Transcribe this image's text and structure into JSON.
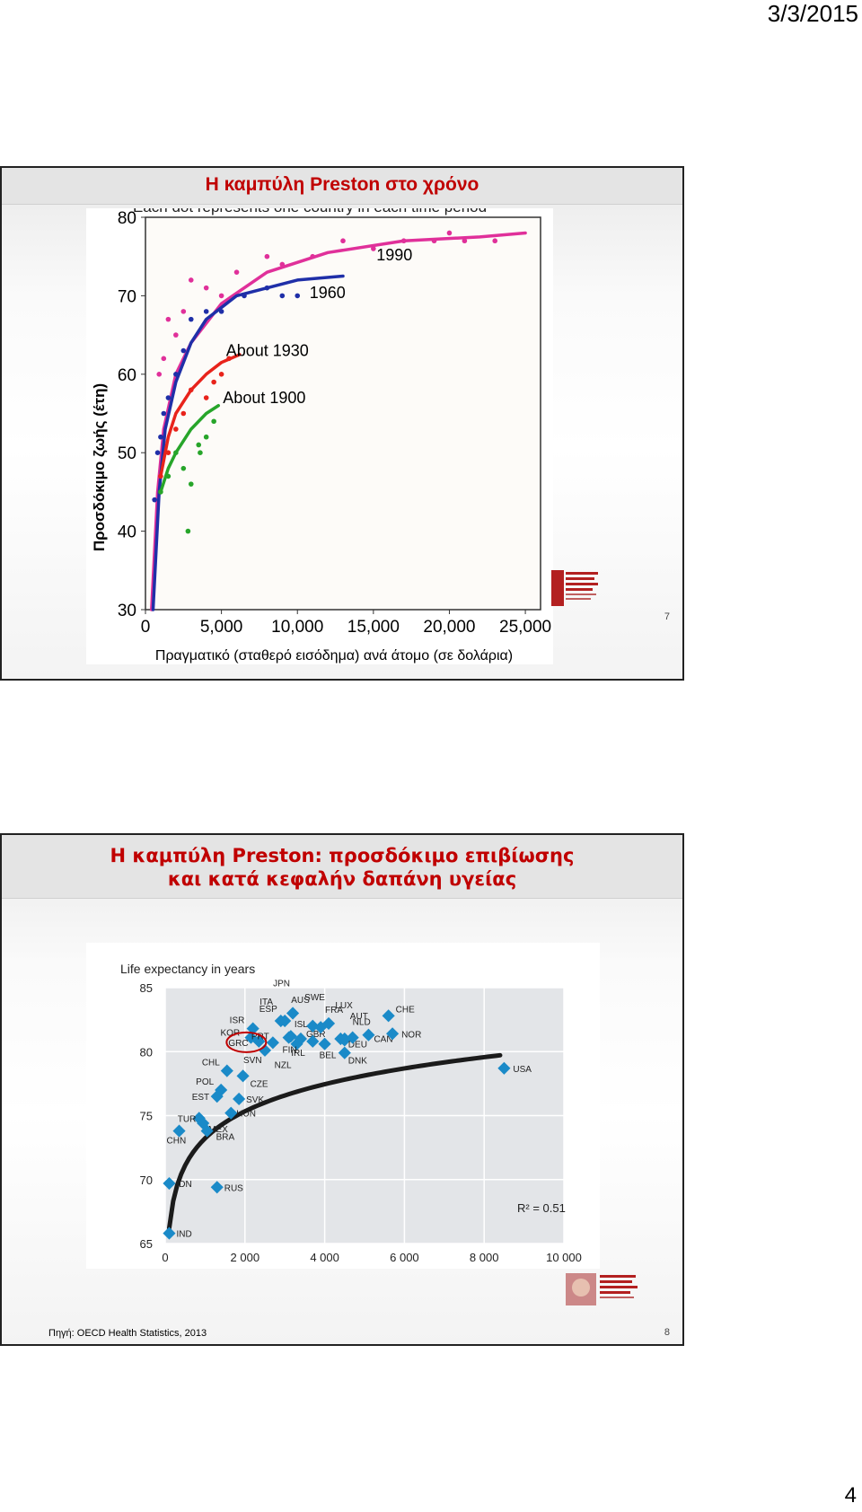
{
  "page": {
    "date": "3/3/2015",
    "page_number": "4"
  },
  "slide1": {
    "title": "Η καμπύλη Preston στο χρόνο",
    "header_partial": "Each dot represents one country in each time period",
    "ylabel": "Προσδόκιμο ζωής (έτη)",
    "xlabel": "Πραγματικό (σταθερό εισόδημα) ανά άτομο (σε δολάρια)",
    "slide_number": "7",
    "curve_labels": [
      "1990",
      "1960",
      "About 1930",
      "About 1900"
    ]
  },
  "slide2": {
    "title_line1": "Η καμπύλη Preston: προσδόκιμο επιβίωσης",
    "title_line2": "και κατά κεφαλήν δαπάνη υγείας",
    "source": "Πηγή: OECD Health Statistics, 2013",
    "slide_number": "8",
    "r2_label": "R² = 0.51"
  },
  "colors": {
    "title_red": "#c00000",
    "magenta": "#e0309a",
    "blue": "#1f2fa8",
    "red": "#e8231b",
    "green": "#27a52a",
    "oecd_point": "#1a8ac8"
  },
  "chart_data": [
    {
      "type": "scatter",
      "title": "",
      "xlabel": "Πραγματικό (σταθερό εισόδημα) ανά άτομο (σε δολάρια)",
      "ylabel": "Προσδόκιμο ζωής (έτη)",
      "xlim": [
        0,
        26000
      ],
      "ylim": [
        30,
        80
      ],
      "x_ticks": [
        "0",
        "5,000",
        "10,000",
        "15,000",
        "20,000",
        "25,000"
      ],
      "y_ticks": [
        "30",
        "40",
        "50",
        "60",
        "70",
        "80"
      ],
      "series": [
        {
          "name": "1990",
          "color": "#e0309a",
          "curve": [
            [
              400,
              30
            ],
            [
              800,
              45
            ],
            [
              1200,
              53
            ],
            [
              2000,
              60
            ],
            [
              3000,
              64
            ],
            [
              5000,
              69
            ],
            [
              8000,
              73
            ],
            [
              12000,
              75.5
            ],
            [
              17000,
              77
            ],
            [
              22000,
              77.5
            ],
            [
              25000,
              78
            ]
          ],
          "points": [
            [
              900,
              60
            ],
            [
              1200,
              62
            ],
            [
              1500,
              67
            ],
            [
              2000,
              65
            ],
            [
              2500,
              68
            ],
            [
              3000,
              72
            ],
            [
              4000,
              71
            ],
            [
              5000,
              70
            ],
            [
              6000,
              73
            ],
            [
              8000,
              75
            ],
            [
              9000,
              74
            ],
            [
              11000,
              75
            ],
            [
              13000,
              77
            ],
            [
              15000,
              76
            ],
            [
              17000,
              77
            ],
            [
              19000,
              77
            ],
            [
              20000,
              78
            ],
            [
              21000,
              77
            ],
            [
              23000,
              77
            ]
          ]
        },
        {
          "name": "1960",
          "color": "#1f2fa8",
          "curve": [
            [
              500,
              30
            ],
            [
              900,
              45
            ],
            [
              1300,
              53
            ],
            [
              2000,
              59
            ],
            [
              3000,
              64
            ],
            [
              4000,
              67
            ],
            [
              6000,
              70
            ],
            [
              8000,
              71
            ],
            [
              10000,
              72
            ],
            [
              13000,
              72.5
            ]
          ],
          "points": [
            [
              600,
              44
            ],
            [
              800,
              50
            ],
            [
              1000,
              52
            ],
            [
              1200,
              55
            ],
            [
              1500,
              57
            ],
            [
              2000,
              60
            ],
            [
              2500,
              63
            ],
            [
              3000,
              67
            ],
            [
              4000,
              68
            ],
            [
              5000,
              68
            ],
            [
              6500,
              70
            ],
            [
              8000,
              71
            ],
            [
              9000,
              70
            ],
            [
              10000,
              70
            ]
          ]
        },
        {
          "name": "About 1930",
          "color": "#e8231b",
          "curve": [
            [
              1000,
              47
            ],
            [
              1500,
              52
            ],
            [
              2000,
              55
            ],
            [
              3000,
              58
            ],
            [
              4000,
              60
            ],
            [
              5000,
              61.5
            ],
            [
              6200,
              62.5
            ]
          ],
          "points": [
            [
              1000,
              47
            ],
            [
              1500,
              50
            ],
            [
              2000,
              53
            ],
            [
              2500,
              55
            ],
            [
              3000,
              58
            ],
            [
              4000,
              57
            ],
            [
              4500,
              59
            ],
            [
              5000,
              60
            ],
            [
              5500,
              62
            ]
          ]
        },
        {
          "name": "About 1900",
          "color": "#27a52a",
          "curve": [
            [
              1000,
              45
            ],
            [
              1500,
              48
            ],
            [
              2000,
              50
            ],
            [
              3000,
              53
            ],
            [
              4000,
              55
            ],
            [
              4800,
              56
            ]
          ],
          "points": [
            [
              1000,
              45
            ],
            [
              1500,
              47
            ],
            [
              2000,
              50
            ],
            [
              2500,
              48
            ],
            [
              3000,
              46
            ],
            [
              3500,
              51
            ],
            [
              4000,
              52
            ],
            [
              4500,
              54
            ],
            [
              2800,
              40
            ],
            [
              3600,
              50
            ]
          ]
        }
      ]
    },
    {
      "type": "scatter",
      "title": "Life expectancy in years",
      "xlim": [
        0,
        10000
      ],
      "ylim": [
        65,
        85
      ],
      "x_ticks": [
        "0",
        "2 000",
        "4 000",
        "6 000",
        "8 000",
        "10 000"
      ],
      "y_ticks": [
        "65",
        "70",
        "75",
        "80",
        "85"
      ],
      "annotation": "R² = 0.51",
      "highlighted": "GRC",
      "points": [
        {
          "label": "IND",
          "x": 100,
          "y": 65.8
        },
        {
          "label": "IDN",
          "x": 100,
          "y": 69.7
        },
        {
          "label": "RUS",
          "x": 1300,
          "y": 69.4
        },
        {
          "label": "CHN",
          "x": 350,
          "y": 73.8
        },
        {
          "label": "TUR",
          "x": 850,
          "y": 74.8
        },
        {
          "label": "MEX",
          "x": 950,
          "y": 74.4
        },
        {
          "label": "BRA",
          "x": 1050,
          "y": 73.8
        },
        {
          "label": "EST",
          "x": 1300,
          "y": 76.5
        },
        {
          "label": "POL",
          "x": 1400,
          "y": 77.0
        },
        {
          "label": "CHL",
          "x": 1550,
          "y": 78.5
        },
        {
          "label": "HUN",
          "x": 1650,
          "y": 75.2
        },
        {
          "label": "SVK",
          "x": 1850,
          "y": 76.3
        },
        {
          "label": "CZE",
          "x": 1950,
          "y": 78.1
        },
        {
          "label": "ISR",
          "x": 2200,
          "y": 81.8
        },
        {
          "label": "KOR",
          "x": 2150,
          "y": 81.1
        },
        {
          "label": "GRC",
          "x": 2350,
          "y": 80.8
        },
        {
          "label": "SVN",
          "x": 2500,
          "y": 80.1
        },
        {
          "label": "ESP",
          "x": 2900,
          "y": 82.4
        },
        {
          "label": "PRT",
          "x": 2700,
          "y": 80.7
        },
        {
          "label": "ITA",
          "x": 3000,
          "y": 82.4
        },
        {
          "label": "JPN",
          "x": 3200,
          "y": 83.0
        },
        {
          "label": "ISL",
          "x": 3150,
          "y": 81.2
        },
        {
          "label": "FIN",
          "x": 3300,
          "y": 80.6
        },
        {
          "label": "NZL",
          "x": 3100,
          "y": 81.1
        },
        {
          "label": "GBR",
          "x": 3400,
          "y": 81.0
        },
        {
          "label": "AUS",
          "x": 3700,
          "y": 82.0
        },
        {
          "label": "SWE",
          "x": 3900,
          "y": 81.9
        },
        {
          "label": "IRL",
          "x": 3700,
          "y": 80.8
        },
        {
          "label": "BEL",
          "x": 4000,
          "y": 80.6
        },
        {
          "label": "FRA",
          "x": 4100,
          "y": 82.2
        },
        {
          "label": "AUT",
          "x": 4500,
          "y": 81.0
        },
        {
          "label": "LUX",
          "x": 4400,
          "y": 81.0
        },
        {
          "label": "DEU",
          "x": 4500,
          "y": 80.9
        },
        {
          "label": "DNK",
          "x": 4500,
          "y": 79.9
        },
        {
          "label": "NLD",
          "x": 4700,
          "y": 81.1
        },
        {
          "label": "CAN",
          "x": 5100,
          "y": 81.3
        },
        {
          "label": "CHE",
          "x": 5600,
          "y": 82.8
        },
        {
          "label": "NOR",
          "x": 5700,
          "y": 81.4
        },
        {
          "label": "USA",
          "x": 8500,
          "y": 78.7
        }
      ]
    }
  ]
}
